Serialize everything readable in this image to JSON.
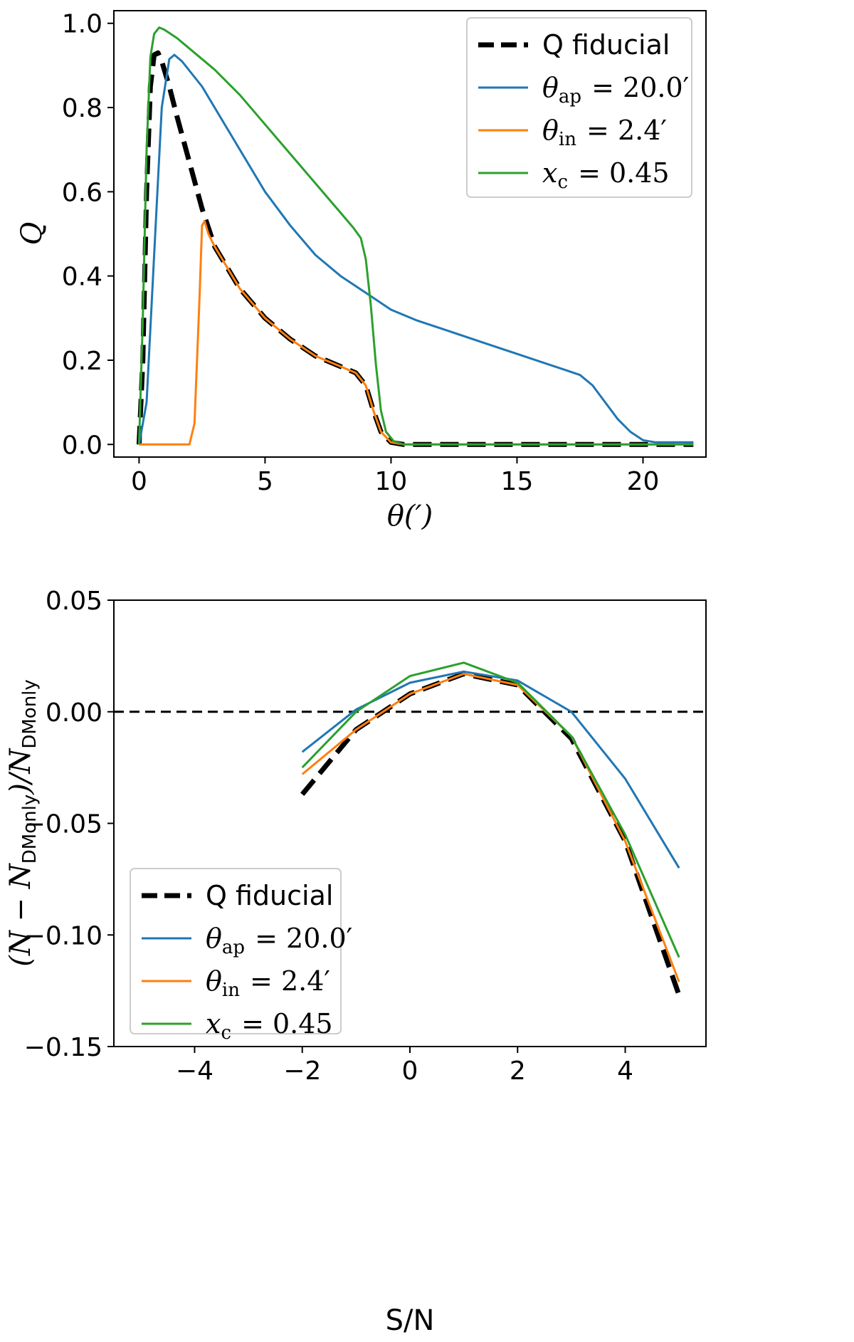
{
  "colors": {
    "fiducial": "#000000",
    "theta_ap": "#1f77b4",
    "theta_in": "#ff7f0e",
    "x_c": "#2ca02c"
  },
  "chart_data": [
    {
      "type": "line",
      "title": "",
      "xlabel": "θ(′)",
      "ylabel": "Q",
      "xlim": [
        -1,
        22.5
      ],
      "ylim": [
        -0.03,
        1.03
      ],
      "xticks": [
        0,
        5,
        10,
        15,
        20
      ],
      "yticks": [
        0.0,
        0.2,
        0.4,
        0.6,
        0.8,
        1.0
      ],
      "xtick_labels": [
        "0",
        "5",
        "10",
        "15",
        "20"
      ],
      "ytick_labels": [
        "0.0",
        "0.2",
        "0.4",
        "0.6",
        "0.8",
        "1.0"
      ],
      "legend_position": "top-right",
      "legend": [
        {
          "key": "fiducial",
          "text": "Q fiducial",
          "style": "dashed"
        },
        {
          "key": "theta_ap",
          "sym": "θ",
          "sub": "ap",
          "rest": " = 20.0′",
          "style": "solid"
        },
        {
          "key": "theta_in",
          "sym": "θ",
          "sub": "in",
          "rest": " = 2.4′",
          "style": "solid"
        },
        {
          "key": "x_c",
          "sym": "x",
          "sub": "c",
          "rest": " = 0.45",
          "style": "solid"
        }
      ],
      "series": [
        {
          "name": "Q fiducial",
          "key": "fiducial",
          "style": "dashed",
          "x": [
            0,
            0.15,
            0.3,
            0.45,
            0.6,
            0.75,
            0.9,
            1.2,
            1.5,
            2.0,
            2.5,
            3.0,
            3.5,
            4.0,
            5.0,
            6.0,
            7.0,
            8.0,
            8.6,
            9.0,
            9.3,
            9.6,
            10.0,
            10.5,
            11,
            15,
            20,
            22
          ],
          "y": [
            0.0,
            0.2,
            0.6,
            0.85,
            0.925,
            0.93,
            0.91,
            0.85,
            0.78,
            0.67,
            0.56,
            0.47,
            0.42,
            0.37,
            0.3,
            0.25,
            0.21,
            0.185,
            0.17,
            0.14,
            0.08,
            0.03,
            0.005,
            0.0,
            0.0,
            0.0,
            0.0,
            0.0
          ]
        },
        {
          "name": "θap = 20.0′",
          "key": "theta_ap",
          "style": "solid",
          "x": [
            0,
            0.3,
            0.6,
            0.9,
            1.2,
            1.4,
            1.7,
            2.5,
            3.5,
            5,
            6,
            7,
            8,
            9,
            10,
            11,
            12,
            13,
            14,
            15,
            16,
            17,
            17.5,
            18,
            18.5,
            19,
            19.5,
            20,
            20.5,
            22
          ],
          "y": [
            0.0,
            0.1,
            0.45,
            0.8,
            0.915,
            0.925,
            0.91,
            0.85,
            0.75,
            0.6,
            0.52,
            0.45,
            0.4,
            0.36,
            0.32,
            0.295,
            0.275,
            0.255,
            0.235,
            0.215,
            0.195,
            0.175,
            0.165,
            0.14,
            0.1,
            0.06,
            0.03,
            0.01,
            0.005,
            0.005
          ]
        },
        {
          "name": "θin = 2.4′",
          "key": "theta_in",
          "style": "solid",
          "x": [
            0,
            1.0,
            2.0,
            2.2,
            2.4,
            2.5,
            2.6,
            2.75,
            3.0,
            3.5,
            4.0,
            5.0,
            6.0,
            7.0,
            8.0,
            8.6,
            9.0,
            9.3,
            9.6,
            10.0,
            10.5,
            11,
            15,
            20,
            22
          ],
          "y": [
            0.0,
            0.0,
            0.0,
            0.05,
            0.35,
            0.52,
            0.53,
            0.5,
            0.47,
            0.42,
            0.37,
            0.3,
            0.25,
            0.21,
            0.185,
            0.17,
            0.14,
            0.08,
            0.03,
            0.005,
            0.0,
            0.0,
            0.0,
            0.0,
            0.0
          ]
        },
        {
          "name": "xc = 0.45",
          "key": "x_c",
          "style": "solid",
          "x": [
            0,
            0.15,
            0.3,
            0.45,
            0.6,
            0.8,
            1.0,
            1.5,
            2,
            3,
            4,
            5,
            6,
            7,
            8,
            8.5,
            8.8,
            9.0,
            9.2,
            9.4,
            9.6,
            9.8,
            10.1,
            10.5,
            11,
            15,
            20,
            22
          ],
          "y": [
            0.0,
            0.3,
            0.7,
            0.92,
            0.975,
            0.99,
            0.985,
            0.965,
            0.94,
            0.89,
            0.83,
            0.76,
            0.69,
            0.62,
            0.55,
            0.515,
            0.49,
            0.44,
            0.33,
            0.19,
            0.08,
            0.03,
            0.008,
            0.0,
            0.0,
            0.0,
            0.0,
            0.0
          ]
        }
      ]
    },
    {
      "type": "line",
      "title": "",
      "xlabel": "S/N",
      "ylabel": "(N − N_DMonly)/N_DMonly",
      "xlim": [
        -5.5,
        5.5
      ],
      "ylim": [
        -0.15,
        0.05
      ],
      "xticks": [
        -4,
        -2,
        0,
        2,
        4
      ],
      "yticks": [
        -0.15,
        -0.1,
        -0.05,
        0.0,
        0.05
      ],
      "xtick_labels": [
        "−4",
        "−2",
        "0",
        "2",
        "4"
      ],
      "ytick_labels": [
        "−0.15",
        "−0.10",
        "−0.05",
        "0.00",
        "0.05"
      ],
      "zero_line": 0.0,
      "legend_position": "bottom-left",
      "legend": [
        {
          "key": "fiducial",
          "text": "Q fiducial",
          "style": "dashed"
        },
        {
          "key": "theta_ap",
          "sym": "θ",
          "sub": "ap",
          "rest": " = 20.0′",
          "style": "solid"
        },
        {
          "key": "theta_in",
          "sym": "θ",
          "sub": "in",
          "rest": " = 2.4′",
          "style": "solid"
        },
        {
          "key": "x_c",
          "sym": "x",
          "sub": "c",
          "rest": " = 0.45",
          "style": "solid"
        }
      ],
      "series": [
        {
          "name": "Q fiducial",
          "key": "fiducial",
          "style": "dashed",
          "x": [
            -2,
            -1,
            0,
            1,
            2,
            3,
            4,
            5
          ],
          "y": [
            -0.037,
            -0.008,
            0.008,
            0.017,
            0.012,
            -0.012,
            -0.058,
            -0.127
          ]
        },
        {
          "name": "θap = 20.0′",
          "key": "theta_ap",
          "style": "solid",
          "x": [
            -2,
            -1,
            0,
            1,
            2,
            3,
            4,
            5
          ],
          "y": [
            -0.018,
            0.001,
            0.013,
            0.018,
            0.014,
            0.0,
            -0.03,
            -0.07
          ]
        },
        {
          "name": "θin = 2.4′",
          "key": "theta_in",
          "style": "solid",
          "x": [
            -2,
            -1,
            0,
            1,
            2,
            3,
            4,
            5
          ],
          "y": [
            -0.028,
            -0.008,
            0.008,
            0.017,
            0.012,
            -0.011,
            -0.058,
            -0.121
          ]
        },
        {
          "name": "xc = 0.45",
          "key": "x_c",
          "style": "solid",
          "x": [
            -2,
            -1,
            0,
            1,
            2,
            3,
            4,
            5
          ],
          "y": [
            -0.025,
            0.0,
            0.016,
            0.022,
            0.013,
            -0.011,
            -0.055,
            -0.11
          ]
        }
      ]
    }
  ]
}
